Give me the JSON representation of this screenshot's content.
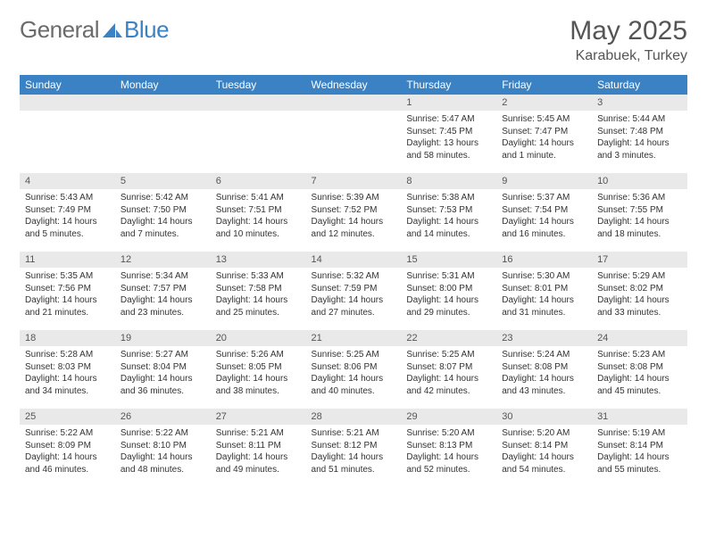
{
  "brand": {
    "general": "General",
    "blue": "Blue"
  },
  "title": "May 2025",
  "location": "Karabuek, Turkey",
  "theme": {
    "header_bg": "#3a82c4",
    "header_fg": "#ffffff",
    "daynum_bg": "#e9e9e9",
    "text": "#333333"
  },
  "day_headers": [
    "Sunday",
    "Monday",
    "Tuesday",
    "Wednesday",
    "Thursday",
    "Friday",
    "Saturday"
  ],
  "weeks": [
    {
      "nums": [
        "",
        "",
        "",
        "",
        "1",
        "2",
        "3"
      ],
      "cells": [
        null,
        null,
        null,
        null,
        {
          "sunrise": "Sunrise: 5:47 AM",
          "sunset": "Sunset: 7:45 PM",
          "daylight": "Daylight: 13 hours and 58 minutes."
        },
        {
          "sunrise": "Sunrise: 5:45 AM",
          "sunset": "Sunset: 7:47 PM",
          "daylight": "Daylight: 14 hours and 1 minute."
        },
        {
          "sunrise": "Sunrise: 5:44 AM",
          "sunset": "Sunset: 7:48 PM",
          "daylight": "Daylight: 14 hours and 3 minutes."
        }
      ]
    },
    {
      "nums": [
        "4",
        "5",
        "6",
        "7",
        "8",
        "9",
        "10"
      ],
      "cells": [
        {
          "sunrise": "Sunrise: 5:43 AM",
          "sunset": "Sunset: 7:49 PM",
          "daylight": "Daylight: 14 hours and 5 minutes."
        },
        {
          "sunrise": "Sunrise: 5:42 AM",
          "sunset": "Sunset: 7:50 PM",
          "daylight": "Daylight: 14 hours and 7 minutes."
        },
        {
          "sunrise": "Sunrise: 5:41 AM",
          "sunset": "Sunset: 7:51 PM",
          "daylight": "Daylight: 14 hours and 10 minutes."
        },
        {
          "sunrise": "Sunrise: 5:39 AM",
          "sunset": "Sunset: 7:52 PM",
          "daylight": "Daylight: 14 hours and 12 minutes."
        },
        {
          "sunrise": "Sunrise: 5:38 AM",
          "sunset": "Sunset: 7:53 PM",
          "daylight": "Daylight: 14 hours and 14 minutes."
        },
        {
          "sunrise": "Sunrise: 5:37 AM",
          "sunset": "Sunset: 7:54 PM",
          "daylight": "Daylight: 14 hours and 16 minutes."
        },
        {
          "sunrise": "Sunrise: 5:36 AM",
          "sunset": "Sunset: 7:55 PM",
          "daylight": "Daylight: 14 hours and 18 minutes."
        }
      ]
    },
    {
      "nums": [
        "11",
        "12",
        "13",
        "14",
        "15",
        "16",
        "17"
      ],
      "cells": [
        {
          "sunrise": "Sunrise: 5:35 AM",
          "sunset": "Sunset: 7:56 PM",
          "daylight": "Daylight: 14 hours and 21 minutes."
        },
        {
          "sunrise": "Sunrise: 5:34 AM",
          "sunset": "Sunset: 7:57 PM",
          "daylight": "Daylight: 14 hours and 23 minutes."
        },
        {
          "sunrise": "Sunrise: 5:33 AM",
          "sunset": "Sunset: 7:58 PM",
          "daylight": "Daylight: 14 hours and 25 minutes."
        },
        {
          "sunrise": "Sunrise: 5:32 AM",
          "sunset": "Sunset: 7:59 PM",
          "daylight": "Daylight: 14 hours and 27 minutes."
        },
        {
          "sunrise": "Sunrise: 5:31 AM",
          "sunset": "Sunset: 8:00 PM",
          "daylight": "Daylight: 14 hours and 29 minutes."
        },
        {
          "sunrise": "Sunrise: 5:30 AM",
          "sunset": "Sunset: 8:01 PM",
          "daylight": "Daylight: 14 hours and 31 minutes."
        },
        {
          "sunrise": "Sunrise: 5:29 AM",
          "sunset": "Sunset: 8:02 PM",
          "daylight": "Daylight: 14 hours and 33 minutes."
        }
      ]
    },
    {
      "nums": [
        "18",
        "19",
        "20",
        "21",
        "22",
        "23",
        "24"
      ],
      "cells": [
        {
          "sunrise": "Sunrise: 5:28 AM",
          "sunset": "Sunset: 8:03 PM",
          "daylight": "Daylight: 14 hours and 34 minutes."
        },
        {
          "sunrise": "Sunrise: 5:27 AM",
          "sunset": "Sunset: 8:04 PM",
          "daylight": "Daylight: 14 hours and 36 minutes."
        },
        {
          "sunrise": "Sunrise: 5:26 AM",
          "sunset": "Sunset: 8:05 PM",
          "daylight": "Daylight: 14 hours and 38 minutes."
        },
        {
          "sunrise": "Sunrise: 5:25 AM",
          "sunset": "Sunset: 8:06 PM",
          "daylight": "Daylight: 14 hours and 40 minutes."
        },
        {
          "sunrise": "Sunrise: 5:25 AM",
          "sunset": "Sunset: 8:07 PM",
          "daylight": "Daylight: 14 hours and 42 minutes."
        },
        {
          "sunrise": "Sunrise: 5:24 AM",
          "sunset": "Sunset: 8:08 PM",
          "daylight": "Daylight: 14 hours and 43 minutes."
        },
        {
          "sunrise": "Sunrise: 5:23 AM",
          "sunset": "Sunset: 8:08 PM",
          "daylight": "Daylight: 14 hours and 45 minutes."
        }
      ]
    },
    {
      "nums": [
        "25",
        "26",
        "27",
        "28",
        "29",
        "30",
        "31"
      ],
      "cells": [
        {
          "sunrise": "Sunrise: 5:22 AM",
          "sunset": "Sunset: 8:09 PM",
          "daylight": "Daylight: 14 hours and 46 minutes."
        },
        {
          "sunrise": "Sunrise: 5:22 AM",
          "sunset": "Sunset: 8:10 PM",
          "daylight": "Daylight: 14 hours and 48 minutes."
        },
        {
          "sunrise": "Sunrise: 5:21 AM",
          "sunset": "Sunset: 8:11 PM",
          "daylight": "Daylight: 14 hours and 49 minutes."
        },
        {
          "sunrise": "Sunrise: 5:21 AM",
          "sunset": "Sunset: 8:12 PM",
          "daylight": "Daylight: 14 hours and 51 minutes."
        },
        {
          "sunrise": "Sunrise: 5:20 AM",
          "sunset": "Sunset: 8:13 PM",
          "daylight": "Daylight: 14 hours and 52 minutes."
        },
        {
          "sunrise": "Sunrise: 5:20 AM",
          "sunset": "Sunset: 8:14 PM",
          "daylight": "Daylight: 14 hours and 54 minutes."
        },
        {
          "sunrise": "Sunrise: 5:19 AM",
          "sunset": "Sunset: 8:14 PM",
          "daylight": "Daylight: 14 hours and 55 minutes."
        }
      ]
    }
  ]
}
